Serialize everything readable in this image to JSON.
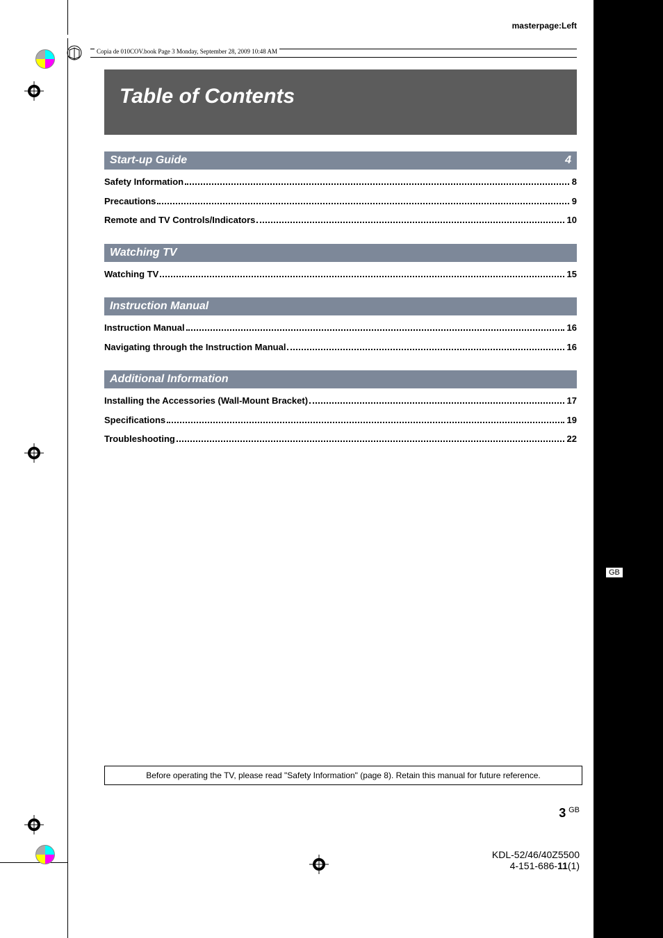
{
  "masterpage_label": "masterpage:Left",
  "book_header": "Copia de 010COV.book  Page 3  Monday, September 28, 2009  10:48 AM",
  "title": "Table of Contents",
  "sections": [
    {
      "heading": "Start-up Guide",
      "heading_page": "4",
      "items": [
        {
          "label": "Safety Information",
          "page": "8"
        },
        {
          "label": "Precautions",
          "page": "9"
        },
        {
          "label": "Remote and TV Controls/Indicators",
          "page": "10"
        }
      ]
    },
    {
      "heading": "Watching TV",
      "heading_page": "",
      "items": [
        {
          "label": "Watching TV",
          "page": "15"
        }
      ]
    },
    {
      "heading": "Instruction Manual",
      "heading_page": "",
      "items": [
        {
          "label": "Instruction Manual",
          "page": "16"
        },
        {
          "label": "Navigating through the Instruction Manual",
          "page": "16"
        }
      ]
    },
    {
      "heading": "Additional Information",
      "heading_page": "",
      "items": [
        {
          "label": "Installing the Accessories (Wall-Mount Bracket)",
          "page": "17"
        },
        {
          "label": "Specifications",
          "page": "19"
        },
        {
          "label": "Troubleshooting",
          "page": "22"
        }
      ]
    }
  ],
  "footer_note": "Before operating the TV, please read \"Safety Information\" (page 8). Retain this manual for future reference.",
  "page_number_big": "3",
  "page_number_small": "GB",
  "gb_label": "GB",
  "model_line1": "KDL-52/46/40Z5500",
  "model_line2_a": "4-151-686-",
  "model_line2_b": "11",
  "model_line2_c": "(1)",
  "colors": {
    "title_bg": "#5c5c5c",
    "section_bg": "#7d8899",
    "rail_bg": "#000000"
  }
}
